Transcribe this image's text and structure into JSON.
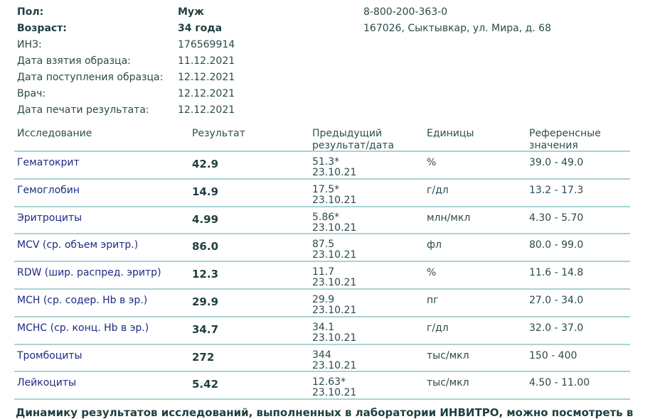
{
  "patient": {
    "fields": [
      {
        "label": "Пол:",
        "value": "Муж",
        "bold": true
      },
      {
        "label": "Возраст:",
        "value": "34 года",
        "bold": true
      },
      {
        "label": "ИНЗ:",
        "value": "176569914"
      },
      {
        "label": "Дата взятия образца:",
        "value": "11.12.2021"
      },
      {
        "label": "Дата поступления образца:",
        "value": "12.12.2021"
      },
      {
        "label": "Врач:",
        "value": "12.12.2021"
      },
      {
        "label": "Дата печати результата:",
        "value": "12.12.2021"
      }
    ]
  },
  "lab": {
    "phone": "8-800-200-363-0",
    "address": "167026, Сыктывкар, ул. Мира, д. 68"
  },
  "table": {
    "headers": {
      "test": "Исследование",
      "result": "Результат",
      "prev1": "Предыдущий",
      "prev2": "результат/дата",
      "units": "Единицы",
      "ref1": "Референсные",
      "ref2": "значения"
    },
    "rows": [
      {
        "name": "Гематокрит",
        "result": "42.9",
        "prev": "51.3*",
        "date": "23.10.21",
        "units": "%",
        "ref": "39.0 - 49.0"
      },
      {
        "name": "Гемоглобин",
        "result": "14.9",
        "prev": "17.5*",
        "date": "23.10.21",
        "units": "г/дл",
        "ref": "13.2 - 17.3"
      },
      {
        "name": "Эритроциты",
        "result": "4.99",
        "prev": "5.86*",
        "date": "23.10.21",
        "units": "млн/мкл",
        "ref": "4.30 - 5.70"
      },
      {
        "name": "MCV (ср. объем эритр.)",
        "result": "86.0",
        "prev": "87.5",
        "date": "23.10.21",
        "units": "фл",
        "ref": "80.0 - 99.0"
      },
      {
        "name": "RDW (шир. распред. эритр)",
        "result": "12.3",
        "prev": "11.7",
        "date": "23.10.21",
        "units": "%",
        "ref": "11.6 - 14.8"
      },
      {
        "name": "MCH (ср. содер. Hb в эр.)",
        "result": "29.9",
        "prev": "29.9",
        "date": "23.10.21",
        "units": "пг",
        "ref": "27.0 - 34.0"
      },
      {
        "name": "MCHC (ср. конц. Hb в эр.)",
        "result": "34.7",
        "prev": "34.1",
        "date": "23.10.21",
        "units": "г/дл",
        "ref": "32.0 - 37.0"
      },
      {
        "name": "Тромбоциты",
        "result": "272",
        "prev": "344",
        "date": "23.10.21",
        "units": "тыс/мкл",
        "ref": "150 - 400"
      },
      {
        "name": "Лейкоциты",
        "result": "5.42",
        "prev": "12.63*",
        "date": "23.10.21",
        "units": "тыс/мкл",
        "ref": "4.50 - 11.00"
      }
    ]
  },
  "footer": "Динамику результатов исследований, выполненных в лаборатории ИНВИТРО, можно посмотреть в"
}
